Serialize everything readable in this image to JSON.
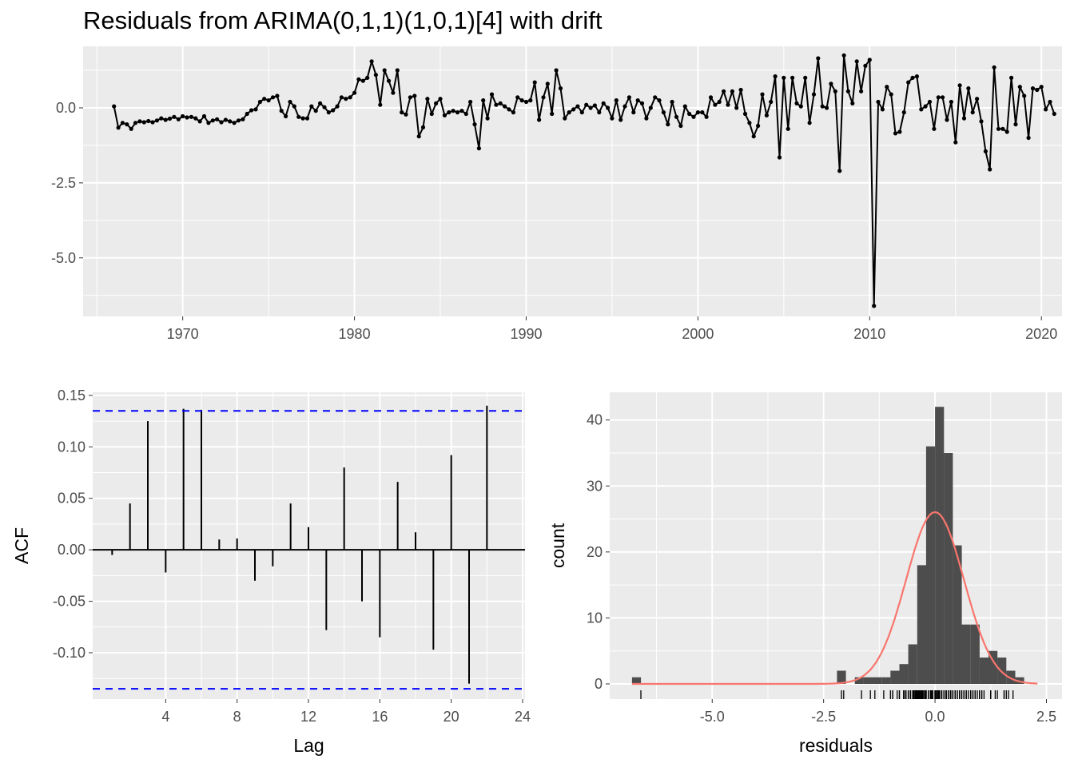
{
  "title": "Residuals from ARIMA(0,1,1)(1,0,1)[4] with drift",
  "colors": {
    "panel": "#ebebeb",
    "grid": "#ffffff",
    "line": "#000000",
    "bound": "#0000ff",
    "bar": "#4d4d4d",
    "density": "#f8766d"
  },
  "chart_data": [
    {
      "type": "line",
      "x_start": 1966.0,
      "x_step": 0.25,
      "xlim": [
        1964.2,
        2021.2
      ],
      "ylim": [
        -6.95,
        2.05
      ],
      "x_ticks": [
        1970,
        1980,
        1990,
        2000,
        2010,
        2020
      ],
      "y_ticks": [
        0.0,
        -2.5,
        -5.0
      ],
      "y_tick_labels": [
        "0.0",
        "-2.5",
        "-5.0"
      ],
      "xlabel": "",
      "ylabel": "",
      "values": [
        0.05,
        -0.66,
        -0.5,
        -0.55,
        -0.7,
        -0.5,
        -0.45,
        -0.48,
        -0.44,
        -0.48,
        -0.42,
        -0.35,
        -0.4,
        -0.36,
        -0.3,
        -0.38,
        -0.28,
        -0.32,
        -0.3,
        -0.35,
        -0.45,
        -0.28,
        -0.5,
        -0.42,
        -0.38,
        -0.48,
        -0.4,
        -0.45,
        -0.5,
        -0.42,
        -0.38,
        -0.2,
        -0.08,
        -0.05,
        0.2,
        0.3,
        0.25,
        0.35,
        0.4,
        -0.1,
        -0.28,
        0.2,
        0.05,
        -0.3,
        -0.35,
        -0.35,
        0.05,
        -0.1,
        0.15,
        0.02,
        -0.15,
        -0.08,
        0.05,
        0.35,
        0.3,
        0.35,
        0.5,
        0.95,
        0.9,
        1.0,
        1.55,
        1.1,
        0.1,
        1.25,
        0.9,
        0.5,
        1.25,
        -0.15,
        -0.22,
        0.35,
        0.4,
        -0.95,
        -0.65,
        0.3,
        -0.2,
        0.15,
        0.3,
        -0.25,
        -0.15,
        -0.1,
        -0.15,
        -0.1,
        -0.2,
        0.2,
        -0.55,
        -1.35,
        0.25,
        -0.35,
        0.45,
        0.1,
        0.15,
        0.05,
        -0.05,
        -0.15,
        0.35,
        0.25,
        0.2,
        0.25,
        0.85,
        -0.4,
        0.35,
        0.8,
        -0.2,
        1.25,
        0.65,
        -0.35,
        -0.15,
        -0.05,
        0.05,
        -0.15,
        0.1,
        0.0,
        0.08,
        -0.15,
        0.15,
        0.0,
        -0.35,
        0.25,
        -0.4,
        0.05,
        0.35,
        -0.15,
        0.25,
        0.15,
        -0.35,
        0.0,
        0.35,
        0.25,
        -0.15,
        -0.55,
        0.2,
        -0.3,
        -0.6,
        0.05,
        -0.2,
        -0.3,
        -0.15,
        -0.15,
        -0.3,
        0.35,
        0.1,
        0.2,
        0.55,
        0.1,
        0.55,
        0.0,
        0.6,
        -0.2,
        -0.5,
        -0.95,
        -0.6,
        0.45,
        -0.25,
        0.2,
        1.05,
        -1.65,
        1.0,
        -0.7,
        1.0,
        0.15,
        0.05,
        1.0,
        -0.5,
        0.45,
        1.65,
        0.05,
        0.0,
        0.8,
        0.55,
        -2.1,
        1.75,
        0.55,
        0.15,
        1.55,
        0.55,
        1.4,
        1.6,
        -6.6,
        0.2,
        -0.05,
        0.7,
        0.45,
        -0.85,
        -0.8,
        -0.15,
        0.85,
        1.0,
        1.05,
        -0.05,
        0.05,
        0.2,
        -0.7,
        0.35,
        0.35,
        -0.4,
        0.2,
        -1.15,
        0.75,
        -0.35,
        0.65,
        -0.15,
        0.3,
        -0.45,
        -1.45,
        -2.05,
        1.35,
        -0.7,
        -0.7,
        -0.8,
        1.0,
        -0.55,
        0.7,
        0.4,
        -1.0,
        0.65,
        0.6,
        0.7,
        -0.05,
        0.2,
        -0.2
      ]
    },
    {
      "type": "bar",
      "xlabel": "Lag",
      "ylabel": "ACF",
      "lags": [
        1,
        2,
        3,
        4,
        5,
        6,
        7,
        8,
        9,
        10,
        11,
        12,
        13,
        14,
        15,
        16,
        17,
        18,
        19,
        20,
        21,
        22
      ],
      "values": [
        -0.005,
        0.045,
        0.125,
        -0.022,
        0.137,
        0.136,
        0.01,
        0.011,
        -0.03,
        -0.016,
        0.045,
        0.022,
        -0.078,
        0.08,
        -0.05,
        -0.085,
        0.066,
        0.017,
        -0.097,
        0.092,
        -0.13,
        0.14
      ],
      "confidence_bound": 0.135,
      "xlim": [
        0,
        24
      ],
      "ylim": [
        -0.145,
        0.153
      ],
      "x_ticks": [
        4,
        8,
        12,
        16,
        20,
        24
      ],
      "x_tick_labels": [
        "4",
        "8",
        "12",
        "16",
        "20",
        "24"
      ],
      "y_ticks": [
        0.15,
        0.1,
        0.05,
        0.0,
        -0.05,
        -0.1
      ],
      "y_tick_labels": [
        "0.15",
        "0.10",
        "0.05",
        "0.00",
        "-0.05",
        "-0.10"
      ]
    },
    {
      "type": "bar",
      "xlabel": "residuals",
      "ylabel": "count",
      "bin_width": 0.2,
      "bins": [
        {
          "x0": -6.8,
          "count": 1
        },
        {
          "x0": -2.2,
          "count": 2
        },
        {
          "x0": -1.8,
          "count": 1
        },
        {
          "x0": -1.6,
          "count": 1
        },
        {
          "x0": -1.4,
          "count": 1
        },
        {
          "x0": -1.2,
          "count": 1
        },
        {
          "x0": -1.0,
          "count": 2
        },
        {
          "x0": -0.8,
          "count": 3
        },
        {
          "x0": -0.6,
          "count": 6
        },
        {
          "x0": -0.4,
          "count": 18
        },
        {
          "x0": -0.2,
          "count": 36
        },
        {
          "x0": 0.0,
          "count": 42
        },
        {
          "x0": 0.2,
          "count": 35
        },
        {
          "x0": 0.4,
          "count": 21
        },
        {
          "x0": 0.6,
          "count": 9
        },
        {
          "x0": 0.8,
          "count": 9
        },
        {
          "x0": 1.0,
          "count": 4
        },
        {
          "x0": 1.2,
          "count": 5
        },
        {
          "x0": 1.4,
          "count": 4
        },
        {
          "x0": 1.6,
          "count": 2
        },
        {
          "x0": 1.8,
          "count": 1
        }
      ],
      "density_curve": {
        "mean": 0.0,
        "sd": 0.65,
        "n": 212,
        "x_range": [
          -6.8,
          2.3
        ]
      },
      "xlim": [
        -7.3,
        2.85
      ],
      "ylim": [
        -2.3,
        44.2
      ],
      "x_ticks": [
        -5.0,
        -2.5,
        0.0,
        2.5
      ],
      "x_tick_labels": [
        "-5.0",
        "-2.5",
        "0.0",
        "2.5"
      ],
      "y_ticks": [
        0,
        10,
        20,
        30,
        40
      ],
      "y_tick_labels": [
        "0",
        "10",
        "20",
        "30",
        "40"
      ]
    }
  ]
}
